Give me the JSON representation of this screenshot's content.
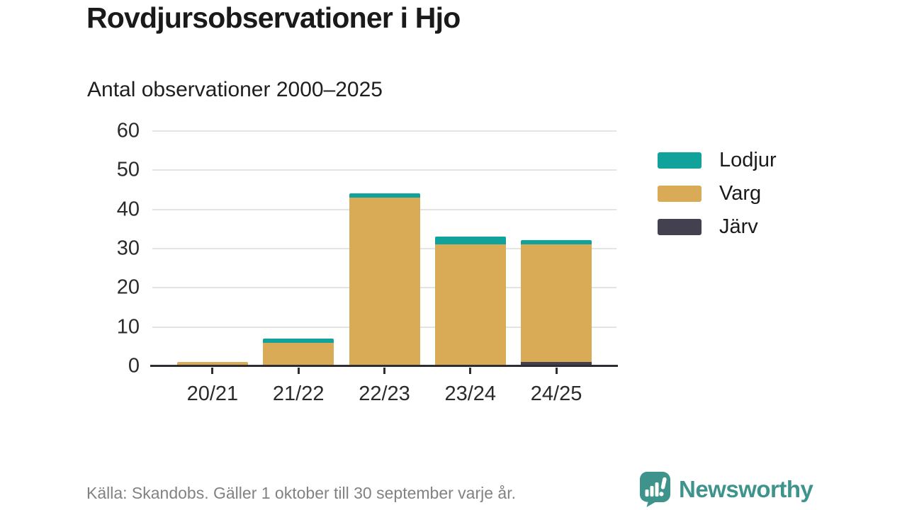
{
  "title": "Rovdjursobservationer i Hjo",
  "subtitle": "Antal observationer 2000–2025",
  "footer": {
    "source": "Källa: Skandobs. Gäller 1 oktober till 30 september varje år."
  },
  "branding": {
    "name": "Newsworthy",
    "color": "#3e948c"
  },
  "colors": {
    "title_text": "#1a1a1a",
    "axis_text": "#2b2b2b",
    "axis_line": "#2e2d33",
    "gridline": "#e4e4e4",
    "footer_text": "#828282",
    "lodjur": "#11a39b",
    "varg": "#d9ab57",
    "jarv": "#434050"
  },
  "chart_data": {
    "type": "bar",
    "stacked": true,
    "title": "Rovdjursobservationer i Hjo",
    "subtitle": "Antal observationer 2000–2025",
    "xlabel": "",
    "ylabel": "",
    "categories": [
      "20/21",
      "21/22",
      "22/23",
      "23/24",
      "24/25"
    ],
    "series": [
      {
        "name": "Lodjur",
        "color": "#11a39b",
        "values": [
          0,
          1,
          1,
          2,
          1
        ]
      },
      {
        "name": "Varg",
        "color": "#d9ab57",
        "values": [
          1,
          6,
          43,
          31,
          30
        ]
      },
      {
        "name": "Järv",
        "color": "#434050",
        "values": [
          0,
          0,
          0,
          0,
          1
        ]
      }
    ],
    "totals": [
      1,
      7,
      44,
      33,
      32
    ],
    "yticks": [
      0,
      10,
      20,
      30,
      40,
      50,
      60
    ],
    "ylim": [
      0,
      60
    ],
    "grid": "horizontal",
    "legend_position": "right"
  }
}
